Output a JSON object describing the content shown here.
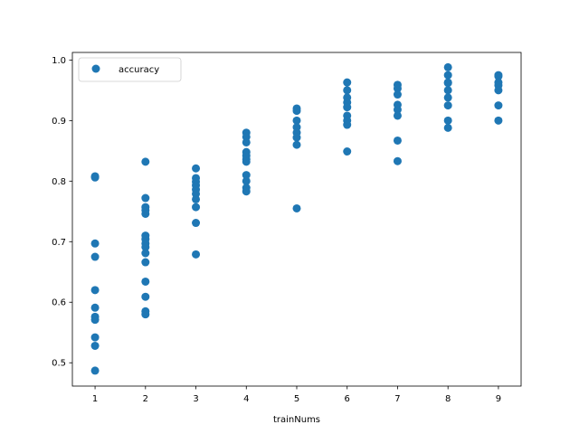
{
  "chart_data": {
    "type": "scatter",
    "xlabel": "trainNums",
    "ylabel": "",
    "xlim": [
      0.55,
      9.45
    ],
    "ylim": [
      0.4615,
      1.0125
    ],
    "xticks": [
      1,
      2,
      3,
      4,
      5,
      6,
      7,
      8,
      9
    ],
    "yticks": [
      0.5,
      0.6,
      0.7,
      0.8,
      0.9,
      1.0
    ],
    "ytick_labels": [
      "0.5",
      "0.6",
      "0.7",
      "0.8",
      "0.9",
      "1.0"
    ],
    "grid": false,
    "legend": {
      "position": "top-left"
    },
    "series": [
      {
        "name": "accuracy",
        "color": "#1f77b4",
        "marker": "circle",
        "points": [
          [
            1,
            0.806
          ],
          [
            1,
            0.808
          ],
          [
            1,
            0.807
          ],
          [
            1,
            0.697
          ],
          [
            1,
            0.675
          ],
          [
            1,
            0.62
          ],
          [
            1,
            0.591
          ],
          [
            1,
            0.576
          ],
          [
            1,
            0.571
          ],
          [
            1,
            0.542
          ],
          [
            1,
            0.528
          ],
          [
            1,
            0.487
          ],
          [
            2,
            0.832
          ],
          [
            2,
            0.772
          ],
          [
            2,
            0.757
          ],
          [
            2,
            0.752
          ],
          [
            2,
            0.746
          ],
          [
            2,
            0.71
          ],
          [
            2,
            0.704
          ],
          [
            2,
            0.697
          ],
          [
            2,
            0.691
          ],
          [
            2,
            0.681
          ],
          [
            2,
            0.666
          ],
          [
            2,
            0.634
          ],
          [
            2,
            0.609
          ],
          [
            2,
            0.585
          ],
          [
            2,
            0.58
          ],
          [
            3,
            0.821
          ],
          [
            3,
            0.805
          ],
          [
            3,
            0.799
          ],
          [
            3,
            0.793
          ],
          [
            3,
            0.786
          ],
          [
            3,
            0.779
          ],
          [
            3,
            0.77
          ],
          [
            3,
            0.757
          ],
          [
            3,
            0.731
          ],
          [
            3,
            0.679
          ],
          [
            4,
            0.88
          ],
          [
            4,
            0.873
          ],
          [
            4,
            0.864
          ],
          [
            4,
            0.848
          ],
          [
            4,
            0.842
          ],
          [
            4,
            0.836
          ],
          [
            4,
            0.832
          ],
          [
            4,
            0.81
          ],
          [
            4,
            0.8
          ],
          [
            4,
            0.789
          ],
          [
            4,
            0.783
          ],
          [
            5,
            0.92
          ],
          [
            5,
            0.916
          ],
          [
            5,
            0.9
          ],
          [
            5,
            0.889
          ],
          [
            5,
            0.88
          ],
          [
            5,
            0.872
          ],
          [
            5,
            0.86
          ],
          [
            5,
            0.755
          ],
          [
            6,
            0.963
          ],
          [
            6,
            0.95
          ],
          [
            6,
            0.938
          ],
          [
            6,
            0.93
          ],
          [
            6,
            0.922
          ],
          [
            6,
            0.908
          ],
          [
            6,
            0.9
          ],
          [
            6,
            0.893
          ],
          [
            6,
            0.849
          ],
          [
            7,
            0.959
          ],
          [
            7,
            0.953
          ],
          [
            7,
            0.943
          ],
          [
            7,
            0.926
          ],
          [
            7,
            0.918
          ],
          [
            7,
            0.908
          ],
          [
            7,
            0.867
          ],
          [
            7,
            0.833
          ],
          [
            8,
            0.988
          ],
          [
            8,
            0.975
          ],
          [
            8,
            0.963
          ],
          [
            8,
            0.962
          ],
          [
            8,
            0.95
          ],
          [
            8,
            0.938
          ],
          [
            8,
            0.925
          ],
          [
            8,
            0.9
          ],
          [
            8,
            0.888
          ],
          [
            9,
            0.975
          ],
          [
            9,
            0.973
          ],
          [
            9,
            0.963
          ],
          [
            9,
            0.958
          ],
          [
            9,
            0.95
          ],
          [
            9,
            0.925
          ],
          [
            9,
            0.9
          ]
        ]
      }
    ]
  }
}
